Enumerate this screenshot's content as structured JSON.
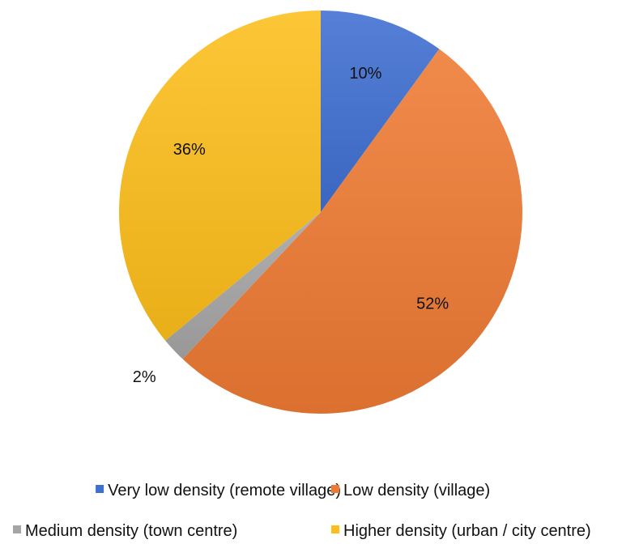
{
  "chart_data": {
    "type": "pie",
    "title": "",
    "slices": [
      {
        "name": "Very low density (remote village)",
        "value": 10,
        "label": "10%",
        "color": "#3F6FD1"
      },
      {
        "name": "Low density (village)",
        "value": 52,
        "label": "52%",
        "color": "#EE7A33"
      },
      {
        "name": "Medium density (town centre)",
        "value": 2,
        "label": "2%",
        "color": "#A5A5A5"
      },
      {
        "name": "Higher density (urban / city centre)",
        "value": 36,
        "label": "36%",
        "color": "#FDBE1B"
      }
    ],
    "legend": {
      "position": "bottom"
    }
  }
}
